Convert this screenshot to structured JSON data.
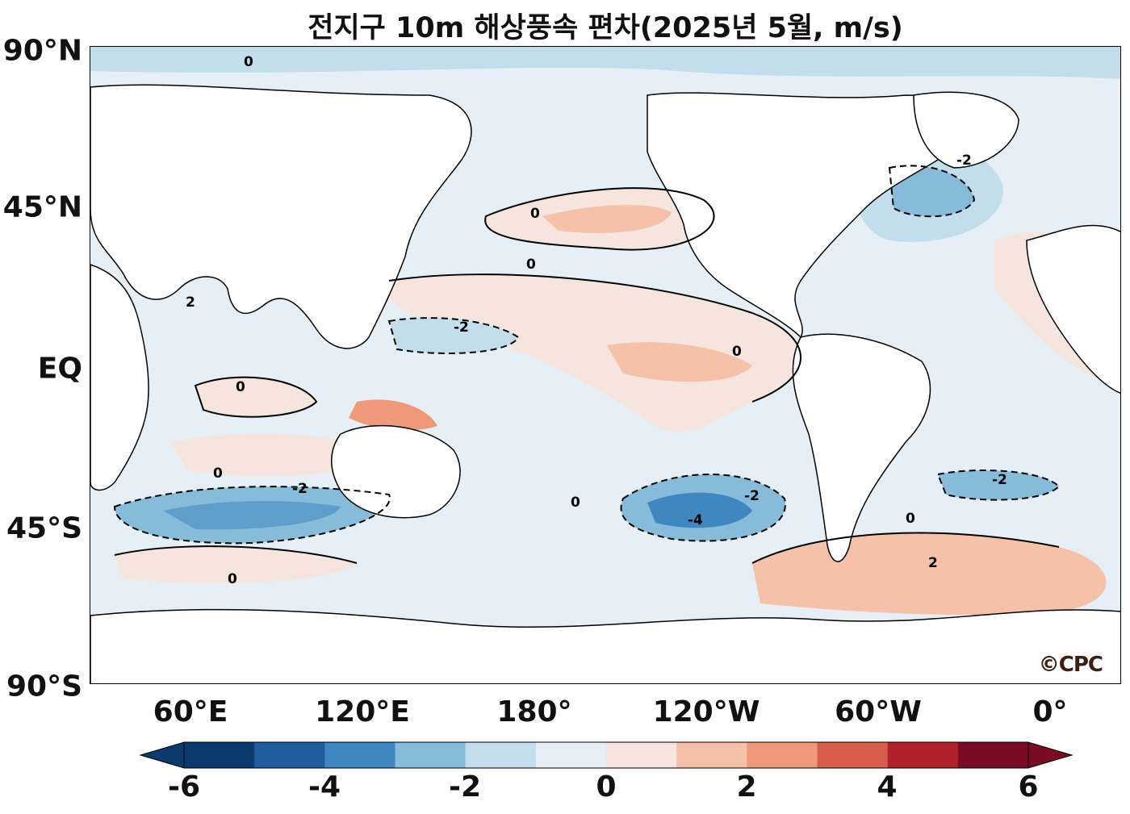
{
  "title": "전지구 10m 해상풍속 편차(2025년 5월, m/s)",
  "lat_labels": [
    "90°N",
    "45°N",
    "EQ",
    "45°S",
    "90°S"
  ],
  "lon_labels": [
    "60°E",
    "120°E",
    "180°",
    "120°W",
    "60°W",
    "0°"
  ],
  "logo_text": "©CPC",
  "contour_labels": {
    "zero": "0",
    "minus_two": "-2",
    "two": "2",
    "minus_four": "-4"
  },
  "colorbar": {
    "ticks": [
      "-6",
      "-4",
      "-2",
      "0",
      "2",
      "4",
      "6"
    ],
    "colors": [
      "#0b3a6e",
      "#1f5c9e",
      "#3f87c0",
      "#86bbda",
      "#c2ddec",
      "#e6eff5",
      "#f6e5dd",
      "#f5c1a8",
      "#ee9a7a",
      "#d85d4a",
      "#b0212c",
      "#7a0b22"
    ]
  },
  "colors": {
    "ocean_base": "#e6eff5",
    "land": "#ffffff"
  }
}
